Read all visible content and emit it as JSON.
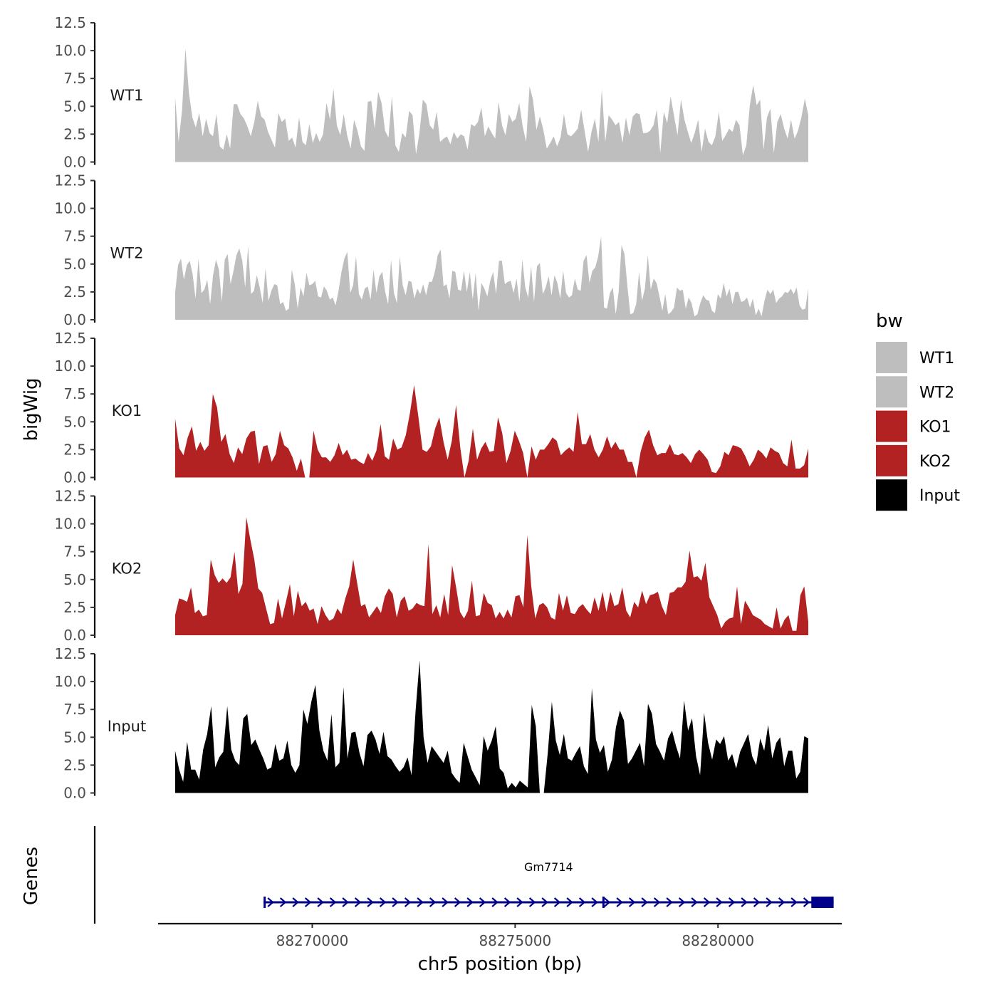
{
  "chart_data": {
    "type": "area",
    "ylabel": "bigWig",
    "xlabel": "chr5 position (bp)",
    "ylim": [
      0,
      12.5
    ],
    "xlim": [
      88266200,
      88283050
    ],
    "y_ticks": [
      "0.0",
      "2.5",
      "5.0",
      "7.5",
      "10.0",
      "12.5"
    ],
    "x_ticks": [
      {
        "value": 88270000,
        "label": "88270000"
      },
      {
        "value": 88275000,
        "label": "88275000"
      },
      {
        "value": 88280000,
        "label": "88280000"
      }
    ],
    "x_start": 88266620,
    "x_step": 39.8,
    "legend": {
      "title": "bw",
      "entries": [
        {
          "label": "WT1",
          "color": "#BEBEBE"
        },
        {
          "label": "WT2",
          "color": "#BEBEBE"
        },
        {
          "label": "KO1",
          "color": "#B22222"
        },
        {
          "label": "KO2",
          "color": "#B22222"
        },
        {
          "label": "Input",
          "color": "#000000"
        }
      ]
    },
    "series": [
      {
        "name": "WT1",
        "color": "#BEBEBE",
        "values": [
          5.8,
          1.8,
          4.6,
          10.2,
          6.2,
          4.0,
          3.1,
          4.4,
          2.3,
          3.9,
          2.6,
          2.3,
          4.3,
          1.4,
          1.1,
          2.5,
          1.2,
          5.2,
          5.2,
          4.3,
          3.9,
          3.2,
          2.3,
          3.6,
          5.5,
          4.1,
          3.8,
          2.7,
          2.0,
          1.3,
          4.4,
          3.6,
          3.9,
          1.9,
          2.2,
          1.3,
          4.0,
          1.8,
          1.5,
          3.4,
          1.7,
          2.6,
          1.8,
          2.5,
          5.3,
          3.8,
          6.6,
          3.3,
          2.4,
          4.3,
          2.4,
          1.2,
          3.8,
          2.8,
          1.4,
          1.0,
          5.4,
          5.5,
          3.0,
          6.3,
          5.3,
          2.8,
          2.2,
          5.9,
          1.5,
          0.9,
          2.6,
          2.2,
          4.6,
          4.2,
          0.7,
          2.6,
          5.6,
          5.2,
          3.3,
          2.9,
          4.5,
          1.8,
          2.1,
          2.3,
          1.6,
          2.7,
          2.1,
          2.5,
          2.3,
          1.1,
          3.4,
          3.2,
          3.6,
          4.9,
          2.3,
          3.2,
          2.6,
          2.1,
          5.4,
          3.3,
          2.4,
          4.3,
          3.6,
          3.9,
          5.3,
          3.2,
          1.8,
          6.8,
          5.6,
          2.9,
          4.1,
          2.9,
          1.2,
          1.7,
          2.3,
          1.4,
          2.2,
          4.3,
          2.5,
          2.3,
          2.6,
          3.0,
          4.7,
          2.8,
          0.9,
          2.7,
          3.9,
          1.8,
          6.5,
          1.8,
          4.2,
          3.8,
          3.3,
          3.6,
          1.7,
          4.0,
          2.4,
          4.1,
          4.4,
          4.3,
          2.6,
          2.6,
          2.8,
          3.3,
          4.7,
          0.8,
          4.5,
          3.5,
          5.9,
          4.1,
          2.4,
          5.6,
          3.8,
          2.7,
          1.7,
          2.6,
          3.8,
          0.9,
          3.0,
          1.8,
          1.5,
          2.3,
          4.5,
          1.9,
          2.4,
          3.0,
          2.7,
          3.8,
          3.3,
          0.6,
          1.5,
          5.1,
          6.9,
          5.1,
          5.6,
          1.1,
          4.0,
          4.8,
          0.8,
          3.6,
          4.3,
          3.0,
          2.1,
          3.8,
          2.1,
          2.8,
          4.0,
          5.7,
          4.2
        ]
      },
      {
        "name": "WT2",
        "color": "#BEBEBE",
        "values": [
          2.4,
          4.9,
          5.5,
          3.6,
          4.9,
          5.3,
          4.1,
          1.9,
          5.5,
          2.4,
          2.7,
          3.6,
          1.4,
          4.0,
          5.4,
          4.5,
          1.6,
          5.4,
          5.9,
          3.2,
          4.4,
          5.8,
          6.4,
          5.3,
          2.9,
          6.6,
          2.3,
          2.6,
          4.0,
          2.9,
          1.5,
          4.6,
          1.7,
          2.6,
          3.2,
          3.1,
          1.4,
          1.6,
          0.8,
          1.0,
          4.5,
          3.2,
          1.0,
          2.9,
          2.1,
          4.2,
          3.1,
          3.2,
          3.5,
          2.1,
          2.0,
          3.0,
          2.6,
          1.8,
          2.0,
          1.3,
          2.6,
          4.3,
          5.5,
          6.1,
          2.4,
          3.1,
          5.7,
          2.3,
          1.8,
          2.8,
          3.0,
          1.8,
          4.5,
          2.4,
          3.9,
          4.3,
          2.5,
          1.4,
          5.4,
          2.4,
          1.5,
          5.7,
          3.1,
          2.2,
          3.5,
          3.4,
          1.9,
          2.8,
          2.3,
          3.2,
          2.2,
          3.4,
          3.4,
          4.3,
          5.8,
          6.3,
          3.0,
          3.2,
          1.9,
          4.4,
          4.3,
          2.7,
          2.6,
          4.4,
          2.5,
          4.3,
          1.8,
          4.2,
          0.8,
          3.3,
          2.8,
          2.1,
          3.5,
          4.3,
          2.3,
          5.3,
          5.3,
          3.2,
          3.4,
          3.5,
          2.4,
          3.7,
          1.6,
          5.4,
          2.9,
          2.0,
          4.8,
          1.6,
          4.8,
          5.1,
          2.3,
          2.9,
          3.9,
          2.2,
          4.0,
          3.3,
          1.9,
          4.4,
          2.4,
          2.0,
          2.2,
          3.7,
          2.7,
          2.6,
          5.3,
          5.8,
          3.3,
          4.4,
          4.7,
          5.7,
          7.5,
          1.1,
          1.0,
          2.4,
          2.9,
          0.5,
          2.5,
          6.7,
          5.9,
          3.0,
          0.5,
          0.6,
          1.4,
          4.3,
          1.7,
          2.8,
          5.8,
          2.7,
          3.7,
          3.3,
          2.1,
          0.8,
          2.3,
          0.5,
          0.7,
          1.1,
          2.9,
          2.6,
          2.7,
          1.0,
          2.0,
          1.5,
          0.3,
          0.5,
          1.5,
          2.2,
          1.8,
          1.7,
          0.8,
          0.6,
          2.3,
          1.9,
          3.3,
          2.1,
          2.8,
          1.4,
          2.5,
          2.5,
          1.6,
          1.7,
          2.0,
          1.1,
          1.9,
          0.4,
          1.0,
          0.3,
          1.7,
          2.7,
          2.3,
          2.7,
          1.5,
          1.9,
          2.1,
          2.5,
          2.4,
          2.8,
          2.3,
          2.9,
          1.3,
          0.9,
          1.0,
          2.8
        ]
      },
      {
        "name": "KO1",
        "color": "#B22222",
        "values": [
          5.3,
          2.6,
          2.0,
          3.6,
          4.6,
          2.4,
          3.2,
          2.4,
          2.9,
          7.5,
          6.3,
          3.2,
          3.9,
          2.1,
          1.3,
          2.7,
          2.1,
          3.5,
          4.1,
          4.2,
          1.2,
          2.8,
          2.9,
          1.4,
          2.1,
          4.2,
          2.9,
          2.6,
          1.8,
          0.6,
          1.7,
          0.0,
          0.0,
          4.2,
          2.5,
          1.8,
          1.8,
          1.4,
          2.0,
          3.1,
          2.0,
          2.5,
          1.6,
          1.7,
          1.4,
          1.2,
          2.2,
          1.5,
          2.4,
          4.8,
          1.9,
          1.6,
          3.5,
          2.5,
          2.7,
          3.8,
          5.8,
          8.3,
          5.5,
          2.5,
          2.3,
          2.8,
          4.4,
          5.4,
          3.2,
          1.6,
          3.3,
          6.5,
          2.7,
          0.0,
          1.5,
          4.4,
          1.6,
          2.6,
          3.2,
          2.3,
          2.4,
          5.4,
          4.0,
          1.3,
          2.4,
          4.2,
          3.3,
          2.2,
          0.0,
          2.8,
          1.6,
          2.5,
          2.5,
          3.0,
          3.6,
          3.3,
          2.0,
          2.4,
          2.7,
          2.3,
          5.9,
          3.0,
          3.0,
          3.9,
          2.5,
          1.8,
          2.5,
          3.7,
          2.6,
          3.2,
          2.5,
          2.5,
          1.4,
          1.4,
          0.0,
          2.3,
          3.6,
          4.3,
          2.9,
          2.0,
          2.2,
          2.2,
          3.0,
          2.1,
          2.0,
          2.2,
          1.8,
          1.3,
          2.1,
          2.5,
          2.1,
          1.6,
          0.5,
          0.4,
          1.0,
          2.3,
          2.0,
          2.9,
          2.8,
          2.6,
          1.9,
          1.0,
          1.6,
          2.5,
          2.2,
          1.7,
          2.7,
          2.4,
          2.2,
          1.3,
          1.0,
          3.4,
          0.8,
          0.8,
          1.1,
          2.6
        ]
      },
      {
        "name": "KO2",
        "color": "#B22222",
        "values": [
          1.8,
          3.3,
          3.2,
          3.0,
          4.3,
          2.0,
          2.3,
          1.7,
          1.8,
          6.8,
          5.4,
          4.7,
          5.1,
          4.7,
          5.2,
          7.5,
          3.7,
          4.6,
          10.6,
          8.6,
          6.8,
          4.2,
          3.8,
          2.4,
          1.0,
          1.1,
          3.3,
          1.5,
          3.0,
          4.6,
          1.7,
          4.0,
          2.6,
          3.0,
          2.2,
          2.4,
          1.0,
          2.6,
          1.8,
          1.3,
          1.5,
          2.4,
          1.9,
          3.3,
          4.4,
          6.8,
          4.7,
          2.6,
          2.8,
          1.6,
          2.1,
          2.6,
          2.0,
          3.5,
          4.2,
          3.7,
          1.6,
          3.1,
          3.5,
          2.2,
          2.4,
          2.9,
          2.7,
          2.6,
          8.2,
          1.9,
          2.7,
          1.6,
          3.7,
          1.8,
          6.3,
          4.3,
          2.1,
          1.5,
          2.2,
          4.9,
          1.7,
          1.8,
          3.8,
          2.9,
          2.7,
          1.5,
          2.1,
          1.5,
          2.3,
          1.6,
          3.5,
          3.6,
          2.5,
          9.0,
          4.4,
          1.5,
          2.7,
          2.9,
          2.5,
          1.6,
          1.4,
          3.8,
          2.2,
          3.6,
          2.0,
          1.9,
          2.5,
          2.8,
          2.3,
          1.9,
          3.4,
          2.2,
          3.9,
          2.1,
          3.9,
          2.6,
          2.8,
          4.3,
          2.2,
          1.6,
          3.0,
          2.5,
          4.0,
          2.8,
          3.6,
          3.7,
          3.9,
          2.6,
          1.8,
          3.8,
          3.9,
          4.3,
          4.3,
          4.8,
          7.6,
          5.2,
          5.3,
          4.9,
          6.5,
          3.4,
          2.6,
          1.8,
          0.6,
          1.2,
          1.5,
          1.6,
          4.4,
          1.0,
          3.1,
          2.5,
          1.8,
          1.6,
          1.4,
          1.0,
          0.8,
          0.6,
          2.5,
          0.6,
          1.4,
          1.8,
          0.4,
          0.4,
          3.6,
          4.4,
          1.2
        ]
      },
      {
        "name": "Input",
        "color": "#000000",
        "values": [
          3.8,
          2.1,
          1.0,
          4.6,
          2.1,
          2.1,
          1.2,
          3.9,
          5.3,
          7.8,
          2.3,
          3.2,
          3.7,
          7.8,
          3.9,
          2.9,
          2.5,
          6.7,
          7.1,
          4.3,
          4.8,
          3.9,
          3.1,
          2.1,
          2.3,
          4.4,
          2.9,
          3.1,
          4.7,
          2.5,
          1.8,
          2.5,
          7.5,
          6.2,
          8.2,
          9.7,
          5.6,
          3.8,
          2.9,
          7.1,
          2.3,
          2.7,
          9.5,
          3.1,
          5.4,
          5.5,
          3.6,
          2.4,
          5.2,
          5.6,
          4.8,
          3.5,
          5.5,
          3.3,
          3.0,
          2.4,
          1.9,
          2.3,
          3.2,
          1.6,
          7.4,
          11.9,
          5.0,
          2.7,
          4.2,
          3.7,
          3.2,
          2.7,
          3.8,
          1.8,
          1.3,
          0.9,
          4.5,
          3.3,
          2.1,
          1.4,
          0.7,
          5.1,
          3.8,
          4.7,
          6.0,
          2.2,
          1.8,
          0.4,
          0.9,
          0.5,
          1.1,
          0.8,
          0.5,
          7.9,
          6.0,
          0.0,
          0.0,
          3.6,
          8.2,
          4.7,
          3.4,
          5.3,
          3.1,
          2.9,
          3.6,
          4.2,
          2.4,
          1.7,
          9.4,
          4.8,
          3.6,
          4.3,
          1.9,
          3.0,
          5.9,
          7.4,
          6.5,
          2.6,
          3.1,
          3.8,
          4.5,
          2.4,
          8.0,
          7.1,
          4.4,
          3.7,
          2.9,
          4.9,
          5.6,
          4.2,
          3.1,
          8.3,
          5.6,
          6.7,
          3.3,
          1.6,
          7.2,
          4.5,
          3.0,
          4.8,
          4.4,
          5.1,
          2.9,
          3.5,
          2.2,
          3.7,
          4.5,
          5.3,
          3.3,
          2.5,
          4.9,
          3.8,
          6.1,
          3.1,
          4.5,
          5.0,
          2.4,
          3.8,
          3.8,
          1.3,
          1.9,
          5.1,
          4.9
        ]
      }
    ],
    "gene_track": {
      "ylabel": "Genes",
      "genes": [
        {
          "name": "Gm7714",
          "start": 88268800,
          "end": 88282850,
          "strand": "+",
          "exons": [
            [
              88268800,
              88268850
            ],
            [
              88277150,
              88277200
            ],
            [
              88282300,
              88282850
            ]
          ],
          "color": "#00008B"
        }
      ]
    }
  }
}
